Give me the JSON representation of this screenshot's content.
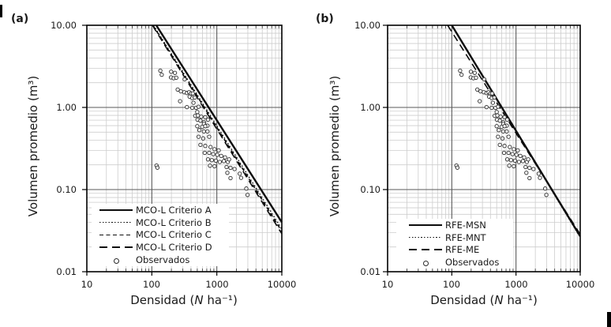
{
  "colors": {
    "background": "#ffffff",
    "frame": "#000000",
    "major_grid": "#5a5a5a",
    "minor_grid": "#cdcdcd",
    "line": "#0d0d0d",
    "marker_stroke": "#2b2b2b",
    "text": "#1a1a1a"
  },
  "chart_data": [
    {
      "type": "scatter",
      "panel_label": "(a)",
      "xlabel": {
        "prefix": "Densidad (",
        "italic": "N",
        "suffix": " ha⁻¹)"
      },
      "ylabel": "Volumen promedio (m³)",
      "xscale": "log",
      "yscale": "log",
      "xlim": [
        10,
        10000
      ],
      "ylim": [
        0.01,
        10
      ],
      "x_tick_labels": [
        "10",
        "100",
        "1000",
        "10000"
      ],
      "y_tick_labels": [
        "10.00",
        "1.00",
        "0.10",
        "0.01"
      ],
      "grid": "log major+minor on",
      "legend_position": "inside lower-left",
      "series": [
        {
          "name": "MCO-L Criterio A",
          "style": "solid",
          "line": [
            [
              117,
              10
            ],
            [
              10000,
              0.04
            ]
          ]
        },
        {
          "name": "MCO-L Criterio B",
          "style": "dotted",
          "line": [
            [
              106,
              10
            ],
            [
              10000,
              0.033
            ]
          ]
        },
        {
          "name": "MCO-L Criterio C",
          "style": "dash",
          "line": [
            [
              104,
              10
            ],
            [
              10000,
              0.031
            ]
          ]
        },
        {
          "name": "MCO-L Criterio D",
          "style": "longdash",
          "line": [
            [
              102,
              10
            ],
            [
              10000,
              0.029
            ]
          ]
        },
        {
          "name": "Observados",
          "style": "marker",
          "points": [
            [
              118,
              0.196
            ],
            [
              122,
              0.185
            ],
            [
              135,
              2.8
            ],
            [
              142,
              2.5
            ],
            [
              197,
              2.32
            ],
            [
              198,
              2.72
            ],
            [
              217,
              2.27
            ],
            [
              227,
              2.63
            ],
            [
              238,
              2.3
            ],
            [
              320,
              2.2
            ],
            [
              250,
              1.65
            ],
            [
              272,
              1.19
            ],
            [
              280,
              1.57
            ],
            [
              315,
              1.53
            ],
            [
              347,
              1.5
            ],
            [
              374,
              1.53
            ],
            [
              400,
              1.48
            ],
            [
              426,
              1.48
            ],
            [
              381,
              1.35
            ],
            [
              419,
              1.3
            ],
            [
              459,
              1.32
            ],
            [
              437,
              1.14
            ],
            [
              347,
              1.01
            ],
            [
              419,
              0.99
            ],
            [
              478,
              0.99
            ],
            [
              525,
              1.02
            ],
            [
              500,
              0.88
            ],
            [
              465,
              0.79
            ],
            [
              511,
              0.8
            ],
            [
              575,
              0.77
            ],
            [
              663,
              0.76
            ],
            [
              732,
              0.71
            ],
            [
              505,
              0.71
            ],
            [
              560,
              0.69
            ],
            [
              633,
              0.66
            ],
            [
              633,
              0.63
            ],
            [
              717,
              0.6
            ],
            [
              500,
              0.59
            ],
            [
              596,
              0.58
            ],
            [
              663,
              0.59
            ],
            [
              540,
              0.53
            ],
            [
              633,
              0.51
            ],
            [
              717,
              0.51
            ],
            [
              525,
              0.44
            ],
            [
              617,
              0.42
            ],
            [
              764,
              0.44
            ],
            [
              560,
              0.35
            ],
            [
              663,
              0.34
            ],
            [
              800,
              0.33
            ],
            [
              924,
              0.31
            ],
            [
              1066,
              0.3
            ],
            [
              650,
              0.28
            ],
            [
              764,
              0.28
            ],
            [
              880,
              0.27
            ],
            [
              1014,
              0.265
            ],
            [
              1166,
              0.257
            ],
            [
              1340,
              0.246
            ],
            [
              732,
              0.233
            ],
            [
              836,
              0.228
            ],
            [
              966,
              0.225
            ],
            [
              1110,
              0.217
            ],
            [
              1279,
              0.222
            ],
            [
              1477,
              0.217
            ],
            [
              1546,
              0.233
            ],
            [
              784,
              0.195
            ],
            [
              924,
              0.192
            ],
            [
              1410,
              0.188
            ],
            [
              1623,
              0.184
            ],
            [
              1871,
              0.178
            ],
            [
              1450,
              0.16
            ],
            [
              1623,
              0.138
            ],
            [
              2254,
              0.156
            ],
            [
              2360,
              0.139
            ],
            [
              2843,
              0.103
            ],
            [
              2970,
              0.086
            ]
          ]
        }
      ]
    },
    {
      "type": "scatter",
      "panel_label": "(b)",
      "xlabel": {
        "prefix": "Densidad (",
        "italic": "N",
        "suffix": " ha⁻¹)"
      },
      "ylabel": "Volumen promedio (m³)",
      "xscale": "log",
      "yscale": "log",
      "xlim": [
        10,
        10000
      ],
      "ylim": [
        0.01,
        10
      ],
      "x_tick_labels": [
        "10",
        "100",
        "1000",
        "10000"
      ],
      "y_tick_labels": [
        "10.00",
        "1.00",
        "0.10",
        "0.01"
      ],
      "grid": "log major+minor on",
      "legend_position": "inside lower-left",
      "series": [
        {
          "name": "RFE-MSN",
          "style": "solid",
          "line": [
            [
              100,
              10
            ],
            [
              10000,
              0.027
            ]
          ]
        },
        {
          "name": "RFE-MNT",
          "style": "dotted",
          "line": [
            [
              100,
              10
            ],
            [
              10000,
              0.0262
            ]
          ]
        },
        {
          "name": "RFE-ME",
          "style": "longdash",
          "line": [
            [
              86,
              10
            ],
            [
              10000,
              0.0285
            ]
          ]
        },
        {
          "name": "Observados",
          "style": "marker",
          "points": [
            [
              118,
              0.196
            ],
            [
              122,
              0.185
            ],
            [
              135,
              2.8
            ],
            [
              142,
              2.5
            ],
            [
              197,
              2.32
            ],
            [
              198,
              2.72
            ],
            [
              217,
              2.27
            ],
            [
              227,
              2.63
            ],
            [
              238,
              2.3
            ],
            [
              320,
              2.2
            ],
            [
              250,
              1.65
            ],
            [
              272,
              1.19
            ],
            [
              280,
              1.57
            ],
            [
              315,
              1.53
            ],
            [
              347,
              1.5
            ],
            [
              374,
              1.53
            ],
            [
              400,
              1.48
            ],
            [
              426,
              1.48
            ],
            [
              381,
              1.35
            ],
            [
              419,
              1.3
            ],
            [
              459,
              1.32
            ],
            [
              437,
              1.14
            ],
            [
              347,
              1.01
            ],
            [
              419,
              0.99
            ],
            [
              478,
              0.99
            ],
            [
              525,
              1.02
            ],
            [
              500,
              0.88
            ],
            [
              465,
              0.79
            ],
            [
              511,
              0.8
            ],
            [
              575,
              0.77
            ],
            [
              663,
              0.76
            ],
            [
              732,
              0.71
            ],
            [
              505,
              0.71
            ],
            [
              560,
              0.69
            ],
            [
              633,
              0.66
            ],
            [
              633,
              0.63
            ],
            [
              717,
              0.6
            ],
            [
              500,
              0.59
            ],
            [
              596,
              0.58
            ],
            [
              663,
              0.59
            ],
            [
              540,
              0.53
            ],
            [
              633,
              0.51
            ],
            [
              717,
              0.51
            ],
            [
              525,
              0.44
            ],
            [
              617,
              0.42
            ],
            [
              764,
              0.44
            ],
            [
              560,
              0.35
            ],
            [
              663,
              0.34
            ],
            [
              800,
              0.33
            ],
            [
              924,
              0.31
            ],
            [
              1066,
              0.3
            ],
            [
              650,
              0.28
            ],
            [
              764,
              0.28
            ],
            [
              880,
              0.27
            ],
            [
              1014,
              0.265
            ],
            [
              1166,
              0.257
            ],
            [
              1340,
              0.246
            ],
            [
              732,
              0.233
            ],
            [
              836,
              0.228
            ],
            [
              966,
              0.225
            ],
            [
              1110,
              0.217
            ],
            [
              1279,
              0.222
            ],
            [
              1477,
              0.217
            ],
            [
              1546,
              0.233
            ],
            [
              784,
              0.195
            ],
            [
              924,
              0.192
            ],
            [
              1410,
              0.188
            ],
            [
              1623,
              0.184
            ],
            [
              1871,
              0.178
            ],
            [
              1450,
              0.16
            ],
            [
              1623,
              0.138
            ],
            [
              2254,
              0.156
            ],
            [
              2360,
              0.139
            ],
            [
              2843,
              0.103
            ],
            [
              2970,
              0.086
            ]
          ]
        }
      ]
    }
  ]
}
